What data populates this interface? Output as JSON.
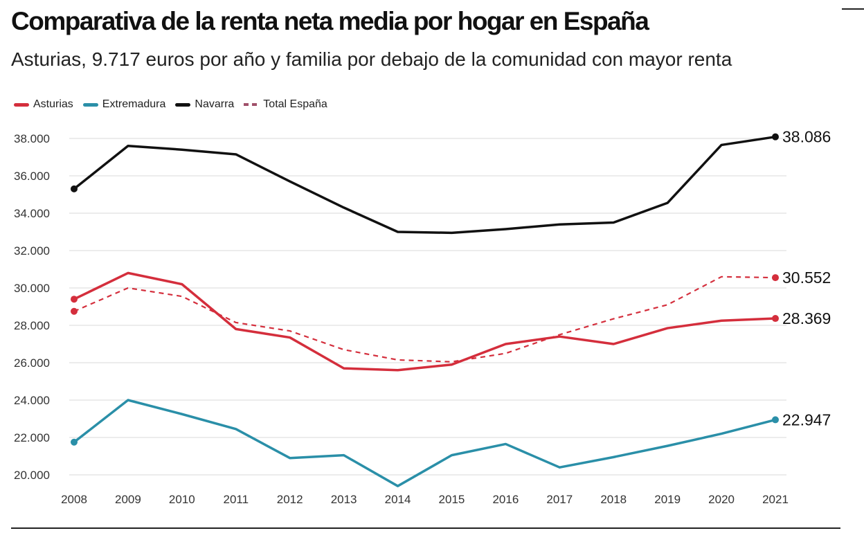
{
  "title": "Comparativa de la renta neta media por hogar en España",
  "subtitle": "Asturias, 9.717 euros por año y familia por debajo de la comunidad con mayor renta",
  "chart_data": {
    "type": "line",
    "title": "Comparativa de la renta neta media por hogar en España",
    "subtitle": "Asturias, 9.717 euros por año y familia por debajo de la comunidad con mayor renta",
    "x": [
      2008,
      2009,
      2010,
      2011,
      2012,
      2013,
      2014,
      2015,
      2016,
      2017,
      2018,
      2019,
      2020,
      2021
    ],
    "ylim": [
      20000,
      38000
    ],
    "yticks": [
      20000,
      22000,
      24000,
      26000,
      28000,
      30000,
      32000,
      34000,
      36000,
      38000
    ],
    "ytick_labels": [
      "20.000",
      "22.000",
      "24.000",
      "26.000",
      "28.000",
      "30.000",
      "32.000",
      "34.000",
      "36.000",
      "38.000"
    ],
    "grid": true,
    "legend_placement": "top-left",
    "series": [
      {
        "name": "Asturias",
        "color": "#d42e3c",
        "style": "solid",
        "values": [
          29400,
          30800,
          30200,
          27800,
          27350,
          25700,
          25600,
          25900,
          27000,
          27400,
          27000,
          27850,
          28250,
          28369
        ],
        "end_label": "28.369"
      },
      {
        "name": "Extremadura",
        "color": "#2a8fa8",
        "style": "solid",
        "values": [
          21750,
          24000,
          23250,
          22450,
          20900,
          21050,
          19400,
          21050,
          21650,
          20400,
          20950,
          21550,
          22200,
          22947
        ],
        "end_label": "22.947"
      },
      {
        "name": "Navarra",
        "color": "#111111",
        "style": "solid",
        "values": [
          35300,
          37600,
          37400,
          37150,
          35700,
          34300,
          33000,
          32950,
          33150,
          33400,
          33500,
          34550,
          37650,
          38086
        ],
        "end_label": "38.086"
      },
      {
        "name": "Total España",
        "color": "#d42e3c",
        "legend_color": "#a0506a",
        "style": "dashed",
        "values": [
          28750,
          30000,
          29550,
          28150,
          27700,
          26700,
          26150,
          26050,
          26500,
          27500,
          28350,
          29100,
          30600,
          30552
        ],
        "end_label": "30.552"
      }
    ]
  }
}
